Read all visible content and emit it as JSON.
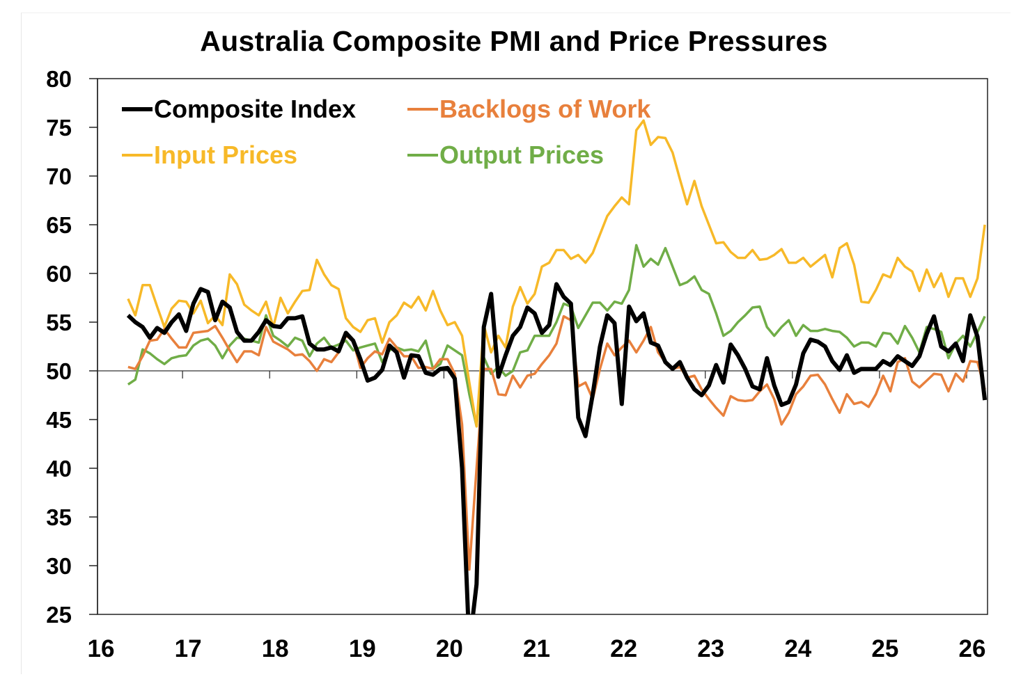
{
  "chart_data": {
    "type": "line",
    "title": "Australia Composite PMI and Price Pressures",
    "xlabel": "",
    "ylabel": "",
    "ylim": [
      25,
      80
    ],
    "yticks": [
      "25",
      "30",
      "35",
      "40",
      "45",
      "50",
      "55",
      "60",
      "65",
      "70",
      "75",
      "80"
    ],
    "xlim": [
      2016,
      2026.3
    ],
    "xticks": [
      "16",
      "17",
      "18",
      "19",
      "20",
      "21",
      "22",
      "23",
      "24",
      "25",
      "26"
    ],
    "reference_line": 50,
    "grid": false,
    "legend_position": "top-left",
    "frequency": "monthly",
    "start": "2016-05",
    "end": "2026-03",
    "series": [
      {
        "name": "Composite Index",
        "color": "#000000",
        "width": 6,
        "values": [
          55.7,
          55,
          54.5,
          53.4,
          54.4,
          53.9,
          55,
          55.8,
          54.1,
          56.9,
          58.4,
          58.1,
          55.2,
          57.1,
          56.5,
          54,
          53.1,
          53.1,
          54,
          55.2,
          54.6,
          54.5,
          55.4,
          55.4,
          55.6,
          52.8,
          52.2,
          52.2,
          52.4,
          52,
          53.9,
          53.1,
          51.2,
          49,
          49.3,
          50.1,
          52.6,
          51.9,
          49.3,
          51.6,
          51.5,
          49.8,
          49.6,
          50.2,
          50.3,
          49.2,
          40,
          21.7,
          28.1,
          54.5,
          57.9,
          49.4,
          51.6,
          53.6,
          54.5,
          56.5,
          55.9,
          53.9,
          54.7,
          58.9,
          57.6,
          56.9,
          45.2,
          43.3,
          47.6,
          52.5,
          55.7,
          54.9,
          46.6,
          56.6,
          55.1,
          55.9,
          52.9,
          52.6,
          50.9,
          50.2,
          50.9,
          49.3,
          48.1,
          47.5,
          48.5,
          50.6,
          48.8,
          52.7,
          51.6,
          50.2,
          48.4,
          48.1,
          51.3,
          48.5,
          46.5,
          46.8,
          48.6,
          51.8,
          53.2,
          53,
          52.5,
          51,
          50.1,
          51.6,
          49.8,
          50.2,
          50.2,
          50.2,
          51,
          50.6,
          51.5,
          51,
          50.5,
          51.5,
          53.8,
          55.6,
          52.5,
          52,
          52.8,
          51,
          55.7,
          53.5,
          47
        ]
      },
      {
        "name": "Backlogs of Work",
        "color": "#E8803C",
        "width": 3.5,
        "values": [
          50.4,
          50.2,
          51.5,
          53.1,
          53.2,
          54.3,
          53.3,
          52.4,
          52.4,
          53.9,
          54,
          54.1,
          54.6,
          53.4,
          52.1,
          50.9,
          52,
          52,
          51.6,
          54.5,
          53,
          52.6,
          52.2,
          51.6,
          51.7,
          51,
          50,
          51.2,
          50.9,
          51.9,
          53.6,
          53.1,
          50.3,
          51.3,
          52,
          51.7,
          53.3,
          52.4,
          51.5,
          51.5,
          50.3,
          50.4,
          50.2,
          51.2,
          51.2,
          49.7,
          44.5,
          29.6,
          40,
          50.2,
          50.2,
          47.6,
          47.5,
          49.5,
          48.3,
          49.5,
          49.7,
          50.7,
          51.6,
          52.8,
          55.6,
          55.2,
          48.4,
          48.8,
          47.1,
          50.2,
          52.8,
          51.6,
          52.4,
          53.1,
          51.9,
          53.1,
          54.5,
          51.9,
          50.9,
          50.2,
          50.4,
          49.3,
          49.5,
          48.1,
          47.1,
          46.2,
          45.4,
          47.4,
          47,
          46.9,
          47,
          47.9,
          48.6,
          47.1,
          44.5,
          45.7,
          47.6,
          48.4,
          49.5,
          49.6,
          48.6,
          47.1,
          45.7,
          47.6,
          46.6,
          46.8,
          46.3,
          47.6,
          49.5,
          47.9,
          50.9,
          51.3,
          48.9,
          48.3,
          49,
          49.7,
          49.6,
          47.9,
          49.7,
          48.9,
          51,
          50.9,
          48.1
        ]
      },
      {
        "name": "Input Prices",
        "color": "#F7B928",
        "width": 3.5,
        "values": [
          57.4,
          55.7,
          58.8,
          58.8,
          56.6,
          54.5,
          56.4,
          57.2,
          57.1,
          55.9,
          57.2,
          54.9,
          55.7,
          54.7,
          59.9,
          58.9,
          56.8,
          56.2,
          55.7,
          57.1,
          54.5,
          57.5,
          55.9,
          57.1,
          58.2,
          58.3,
          61.4,
          59.9,
          58.8,
          58.4,
          55.4,
          54.5,
          54,
          55.2,
          55.4,
          52.9,
          55,
          55.7,
          57,
          56.5,
          57.6,
          56.2,
          58.2,
          56.2,
          54.7,
          55,
          53.6,
          48.8,
          44.3,
          54.7,
          51.9,
          53.6,
          52.4,
          56.6,
          58.6,
          56.9,
          57.9,
          60.7,
          61.1,
          62.4,
          62.4,
          61.5,
          61.9,
          61.1,
          62.1,
          64,
          65.9,
          66.9,
          67.8,
          67.1,
          74.7,
          75.7,
          73.2,
          74,
          73.9,
          72.4,
          69.7,
          67.1,
          69.5,
          66.9,
          65,
          63.1,
          63.2,
          62.2,
          61.6,
          61.6,
          62.4,
          61.4,
          61.5,
          61.9,
          62.5,
          61.1,
          61.1,
          61.6,
          60.7,
          61.3,
          61.9,
          59.6,
          62.6,
          63.1,
          60.9,
          57.1,
          57,
          58.3,
          59.9,
          59.6,
          61.6,
          60.7,
          60.2,
          58.2,
          60.4,
          58.6,
          60,
          57.6,
          59.5,
          59.5,
          57.6,
          59.5,
          65
        ]
      },
      {
        "name": "Output Prices",
        "color": "#70AD47",
        "width": 3.5,
        "values": [
          48.6,
          49.1,
          52.2,
          51.8,
          51.2,
          50.7,
          51.3,
          51.5,
          51.6,
          52.6,
          53.1,
          53.3,
          52.6,
          51.3,
          52.6,
          53.4,
          53.3,
          53.1,
          52.9,
          55.7,
          53.6,
          53.1,
          52.5,
          53.4,
          53.1,
          51.5,
          52.8,
          53.4,
          52.4,
          52.7,
          53.1,
          52.1,
          52.4,
          52.6,
          52.8,
          50.9,
          52.1,
          52.4,
          52.1,
          52.2,
          52,
          53.1,
          50.2,
          50.7,
          52.6,
          52.1,
          51.6,
          47.6,
          44.3,
          51.4,
          49.7,
          50.4,
          49.5,
          50,
          51.9,
          52.1,
          53.6,
          53.6,
          53.6,
          55,
          56.9,
          56.6,
          54.4,
          55.7,
          57,
          57,
          56.2,
          57.1,
          56.9,
          58.3,
          62.9,
          60.7,
          61.5,
          60.9,
          62.6,
          60.7,
          58.8,
          59.1,
          59.7,
          58.3,
          57.9,
          55.9,
          53.6,
          54.1,
          55,
          55.7,
          56.5,
          56.6,
          54.5,
          53.6,
          54.5,
          55.2,
          53.6,
          54.7,
          54.1,
          54.1,
          54.3,
          54.1,
          54,
          53.4,
          52.5,
          52.9,
          52.9,
          52.5,
          53.9,
          53.8,
          52.8,
          54.6,
          53.4,
          51.9,
          54.5,
          54.3,
          54,
          51.3,
          52.8,
          53.6,
          52.5,
          54,
          55.6
        ]
      }
    ]
  }
}
